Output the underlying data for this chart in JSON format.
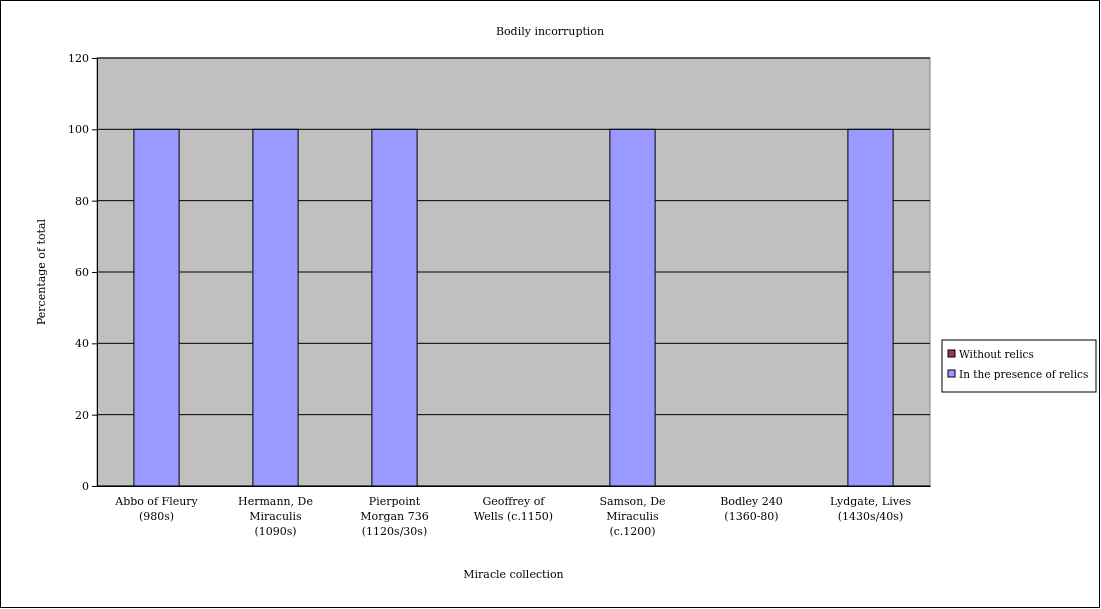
{
  "chart_data": {
    "type": "bar",
    "title": "Bodily incorruption",
    "xlabel": "Miracle collection",
    "ylabel": "Percentage of total",
    "categories": [
      "Abbo of Fleury (980s)",
      "Hermann, De Miraculis (1090s)",
      "Pierpoint Morgan 736 (1120s/30s)",
      "Geoffrey of Wells (c.1150)",
      "Samson, De Miraculis (c.1200)",
      "Bodley 240 (1360-80)",
      "Lydgate, Lives (1430s/40s)"
    ],
    "series": [
      {
        "name": "Without relics",
        "color": "#993366",
        "values": [
          0,
          0,
          0,
          0,
          0,
          0,
          0
        ]
      },
      {
        "name": "In the presence of relics",
        "color": "#9999ff",
        "values": [
          100,
          100,
          100,
          0,
          100,
          0,
          100
        ]
      }
    ],
    "ylim": [
      0,
      120
    ],
    "yticks": [
      0,
      20,
      40,
      60,
      80,
      100,
      120
    ],
    "grid": "y",
    "legend": "right"
  }
}
